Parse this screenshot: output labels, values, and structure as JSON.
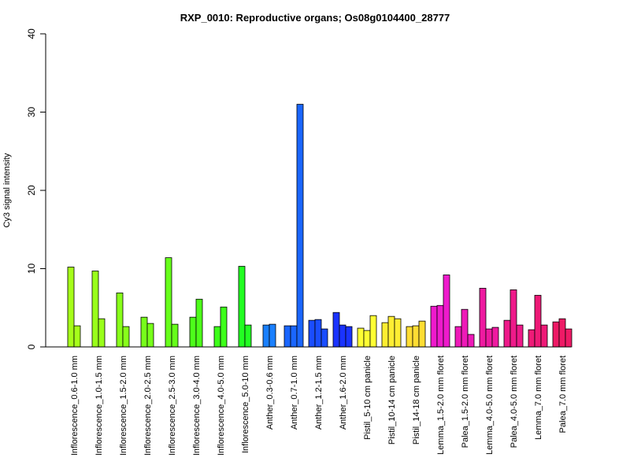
{
  "chart_data": {
    "type": "bar",
    "title": "RXP_0010: Reproductive organs; Os08g0104400_28777",
    "ylabel": "Cy3 signal intensity",
    "xlabel": "",
    "ylim": [
      0,
      40
    ],
    "yticks": [
      "0",
      "10",
      "20",
      "30",
      "40"
    ],
    "grid": false,
    "groups": [
      {
        "label": "Inflorescence_0.6-1.0 mm",
        "color": "#a6ff1a",
        "values": [
          10.2,
          2.7
        ]
      },
      {
        "label": "Inflorescence_1.0-1.5 mm",
        "color": "#99ff1a",
        "values": [
          9.7,
          3.6
        ]
      },
      {
        "label": "Inflorescence_1.5-2.0 mm",
        "color": "#88ff1a",
        "values": [
          6.9,
          2.6
        ]
      },
      {
        "label": "Inflorescence_2.0-2.5 mm",
        "color": "#77ff1a",
        "values": [
          3.8,
          3.0
        ]
      },
      {
        "label": "Inflorescence_2.5-3.0 mm",
        "color": "#66ff1a",
        "values": [
          11.4,
          2.9
        ]
      },
      {
        "label": "Inflorescence_3.0-4.0 mm",
        "color": "#4dff1a",
        "values": [
          3.8,
          6.1
        ]
      },
      {
        "label": "Inflorescence_4.0-5.0 mm",
        "color": "#3dff1a",
        "values": [
          2.6,
          5.1
        ]
      },
      {
        "label": "Inflorescence_5.0-10 mm",
        "color": "#22ff22",
        "values": [
          10.3,
          2.8
        ]
      },
      {
        "label": "Anther_0.3-0.6 mm",
        "color": "#1a80ff",
        "values": [
          2.8,
          2.9
        ]
      },
      {
        "label": "Anther_0.7-1.0 mm",
        "color": "#1a66ff",
        "values": [
          2.7,
          2.7,
          31.0
        ]
      },
      {
        "label": "Anther_1.2-1.5 mm",
        "color": "#1a4dff",
        "values": [
          3.4,
          3.5,
          2.3
        ]
      },
      {
        "label": "Anther_1.6-2.0 mm",
        "color": "#1a33ff",
        "values": [
          4.4,
          2.8,
          2.6
        ]
      },
      {
        "label": "Pistil_5-10 cm panicle",
        "color": "#ffff33",
        "values": [
          2.4,
          2.1,
          4.0
        ]
      },
      {
        "label": "Pistil_10-14 cm panicle",
        "color": "#ffee33",
        "values": [
          3.1,
          3.9,
          3.6
        ]
      },
      {
        "label": "Pistil_14-18 cm panicle",
        "color": "#ffdd33",
        "values": [
          2.6,
          2.7,
          3.3
        ]
      },
      {
        "label": "Lemma_1.5-2.0 mm floret",
        "color": "#ee1acc",
        "values": [
          5.2,
          5.3,
          9.2
        ]
      },
      {
        "label": "Palea_1.5-2.0 mm floret",
        "color": "#ee1ab8",
        "values": [
          2.6,
          4.8,
          1.6
        ]
      },
      {
        "label": "Lemma_4.0-5.0 mm floret",
        "color": "#ee1aa0",
        "values": [
          7.5,
          2.3,
          2.5
        ]
      },
      {
        "label": "Palea_4.0-5.0 mm floret",
        "color": "#ee1a8a",
        "values": [
          3.4,
          7.3,
          2.8
        ]
      },
      {
        "label": "Lemma_7.0 mm floret",
        "color": "#ee1a77",
        "values": [
          2.2,
          6.6,
          2.8
        ]
      },
      {
        "label": "Palea_7.0 mm floret",
        "color": "#ee1a66",
        "values": [
          3.2,
          3.6,
          2.3
        ]
      }
    ]
  }
}
